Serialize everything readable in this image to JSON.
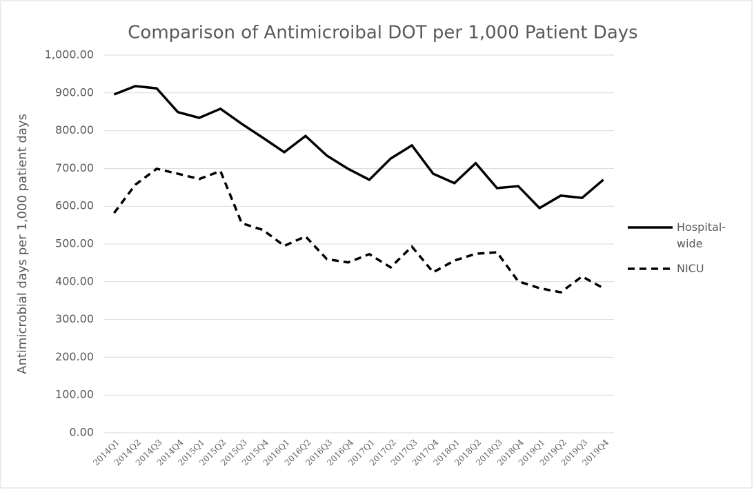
{
  "chart_data": {
    "type": "line",
    "title": "Comparison of Antimicroibal DOT per 1,000 Patient Days",
    "y_label": "Antimicrobial days per 1,000 patient days",
    "categories": [
      "2014Q1",
      "2014Q2",
      "2014Q3",
      "2014Q4",
      "2015Q1",
      "2015Q2",
      "2015Q3",
      "2015Q4",
      "2016Q1",
      "2016Q2",
      "2016Q3",
      "2016Q4",
      "2017Q1",
      "2017Q2",
      "2017Q3",
      "2017Q4",
      "2018Q1",
      "2018Q2",
      "2018Q3",
      "2018Q4",
      "2019Q1",
      "2019Q2",
      "2019Q3",
      "2019Q4"
    ],
    "series": [
      {
        "name": "Hospital-wide",
        "color": "#000000",
        "line_style": "solid",
        "values": [
          896,
          918,
          912,
          849,
          834,
          858,
          818,
          781,
          743,
          786,
          734,
          699,
          670,
          726,
          761,
          686,
          661,
          714,
          648,
          653,
          595,
          628,
          622,
          670
        ]
      },
      {
        "name": "NICU",
        "color": "#000000",
        "line_style": "dashed",
        "values": [
          582,
          657,
          699,
          686,
          672,
          693,
          555,
          537,
          495,
          520,
          460,
          451,
          473,
          438,
          493,
          425,
          456,
          474,
          478,
          401,
          383,
          372,
          414,
          383
        ]
      }
    ],
    "ylim": [
      0,
      1000
    ],
    "yticks": [
      {
        "value": 0,
        "label": "0.00"
      },
      {
        "value": 100,
        "label": "100.00"
      },
      {
        "value": 200,
        "label": "200.00"
      },
      {
        "value": 300,
        "label": "300.00"
      },
      {
        "value": 400,
        "label": "400.00"
      },
      {
        "value": 500,
        "label": "500.00"
      },
      {
        "value": 600,
        "label": "600.00"
      },
      {
        "value": 700,
        "label": "700.00"
      },
      {
        "value": 800,
        "label": "800.00"
      },
      {
        "value": 900,
        "label": "900.00"
      },
      {
        "value": 1000,
        "label": "1,000.00"
      }
    ],
    "grid": true,
    "legend": "right"
  }
}
